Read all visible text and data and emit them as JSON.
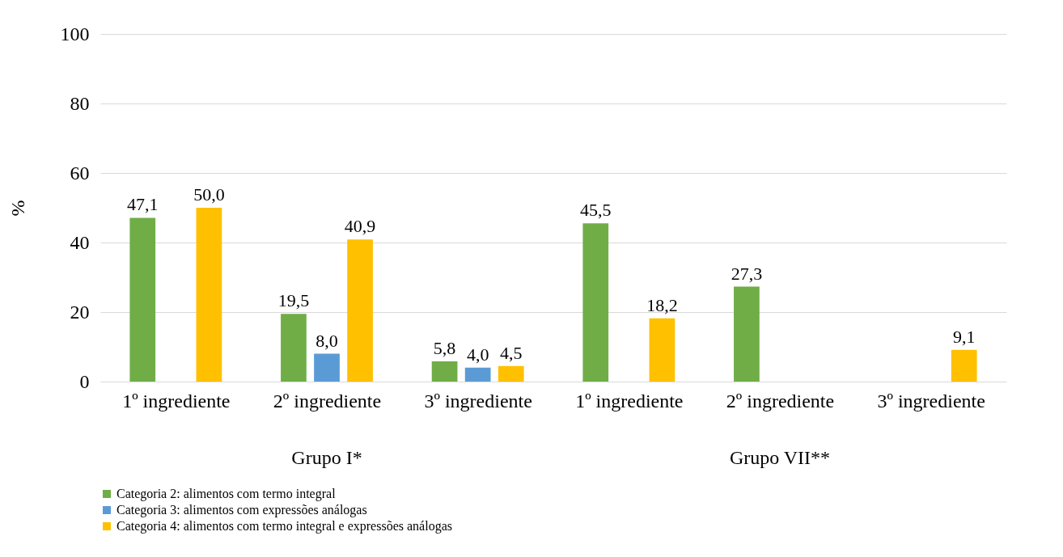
{
  "chart_data": {
    "type": "bar",
    "ylabel": "%",
    "categories": [
      "1º ingrediente",
      "2º ingrediente",
      "3º ingrediente",
      "1º ingrediente",
      "2º ingrediente",
      "3º ingrediente"
    ],
    "series": [
      {
        "name": "Categoria 2: alimentos com termo integral",
        "color": "#70ad47",
        "values": [
          47.1,
          19.5,
          5.8,
          45.5,
          27.3,
          null
        ],
        "value_labels": [
          "47,1",
          "19,5",
          "5,8",
          "45,5",
          "27,3",
          null
        ]
      },
      {
        "name": "Categoria 3: alimentos com expressões análogas",
        "color": "#5b9bd5",
        "values": [
          null,
          8.0,
          4.0,
          null,
          null,
          null
        ],
        "value_labels": [
          null,
          "8,0",
          "4,0",
          null,
          null,
          null
        ]
      },
      {
        "name": "Categoria 4: alimentos com termo integral e expressões análogas",
        "color": "#ffc000",
        "values": [
          50.0,
          40.9,
          4.5,
          18.2,
          null,
          9.1
        ],
        "value_labels": [
          "50,0",
          "40,9",
          "4,5",
          "18,2",
          null,
          "9,1"
        ]
      }
    ],
    "annotations": [
      "Grupo I*",
      "Grupo VII**"
    ],
    "ylim": [
      0,
      100
    ],
    "yticks": [
      0,
      20,
      40,
      60,
      80,
      100
    ],
    "grid": "y",
    "legend": "bottom left"
  }
}
